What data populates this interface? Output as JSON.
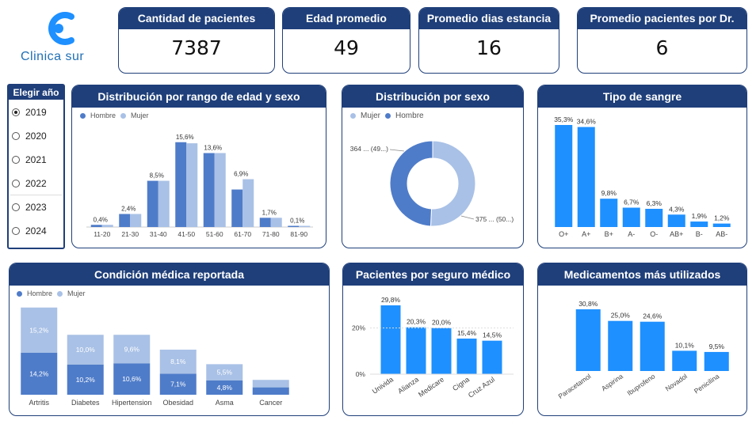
{
  "logo": {
    "text": "Clinica sur"
  },
  "kpis": [
    {
      "title": "Cantidad de pacientes",
      "value": "7387"
    },
    {
      "title": "Edad promedio",
      "value": "49"
    },
    {
      "title": "Promedio dias estancia",
      "value": "16"
    },
    {
      "title": "Promedio pacientes por Dr.",
      "value": "6"
    }
  ],
  "year_filter": {
    "title": "Elegir año",
    "options": [
      "2019",
      "2020",
      "2021",
      "2022",
      "2023",
      "2024"
    ],
    "selected": "2019"
  },
  "colors": {
    "navy": "#1f3f7a",
    "hombre": "#4f7cc9",
    "mujer": "#a9c1e6",
    "blue": "#1e90ff"
  },
  "chart_data": [
    {
      "id": "edad_sexo",
      "type": "bar",
      "title": "Distribución por rango de edad y sexo",
      "categories": [
        "11-20",
        "21-30",
        "31-40",
        "41-50",
        "51-60",
        "61-70",
        "71-80",
        "81-90"
      ],
      "labels": [
        "0,4%",
        "2,4%",
        "8,5%",
        "15,6%",
        "13,6%",
        "6,9%",
        "1,7%",
        "0,1%"
      ],
      "series": [
        {
          "name": "Hombre",
          "values": [
            0.4,
            2.4,
            8.5,
            15.6,
            13.6,
            6.9,
            1.7,
            0.1
          ]
        },
        {
          "name": "Mujer",
          "values": [
            0.4,
            2.4,
            8.5,
            15.4,
            13.6,
            8.8,
            1.7,
            0.1
          ]
        }
      ]
    },
    {
      "id": "sexo",
      "type": "pie",
      "title": "Distribución por sexo",
      "categories": [
        "Mujer",
        "Hombre"
      ],
      "values": [
        375,
        364
      ],
      "labels": [
        "375 ... (50...)",
        "364 ... (49...)"
      ]
    },
    {
      "id": "sangre",
      "type": "bar",
      "title": "Tipo de sangre",
      "categories": [
        "O+",
        "A+",
        "B+",
        "A-",
        "O-",
        "AB+",
        "B-",
        "AB-"
      ],
      "values": [
        35.3,
        34.6,
        9.8,
        6.7,
        6.3,
        4.3,
        1.9,
        1.2
      ],
      "labels": [
        "35,3%",
        "34,6%",
        "9,8%",
        "6,7%",
        "6,3%",
        "4,3%",
        "1,9%",
        "1,2%"
      ]
    },
    {
      "id": "condicion",
      "type": "bar",
      "title": "Condición médica reportada",
      "categories": [
        "Artritis",
        "Diabetes",
        "Hipertension",
        "Obesidad",
        "Asma",
        "Cancer"
      ],
      "series": [
        {
          "name": "Hombre",
          "values": [
            14.2,
            10.2,
            10.6,
            7.1,
            4.8,
            2.5
          ],
          "labels": [
            "14,2%",
            "10,2%",
            "10,6%",
            "7,1%",
            "4,8%",
            ""
          ]
        },
        {
          "name": "Mujer",
          "values": [
            15.2,
            10.0,
            9.6,
            8.1,
            5.5,
            2.5
          ],
          "labels": [
            "15,2%",
            "10,0%",
            "9,6%",
            "8,1%",
            "5,5%",
            ""
          ]
        }
      ]
    },
    {
      "id": "seguro",
      "type": "bar",
      "title": "Pacientes por seguro médico",
      "categories": [
        "Univida",
        "Alianza",
        "Medicare",
        "Cigna",
        "Cruz Azul"
      ],
      "values": [
        29.8,
        20.3,
        20.0,
        15.4,
        14.5
      ],
      "labels": [
        "29,8%",
        "20,3%",
        "20,0%",
        "15,4%",
        "14,5%"
      ],
      "yticks": [
        "20%",
        "0%"
      ],
      "ytick_values": [
        20,
        0
      ]
    },
    {
      "id": "medicamentos",
      "type": "bar",
      "title": "Medicamentos más utilizados",
      "categories": [
        "Paracetamol",
        "Aspirina",
        "Ibuprofeno",
        "Novadol",
        "Penicilina"
      ],
      "values": [
        30.8,
        25.0,
        24.6,
        10.1,
        9.5
      ],
      "labels": [
        "30,8%",
        "25,0%",
        "24,6%",
        "10,1%",
        "9,5%"
      ]
    }
  ]
}
